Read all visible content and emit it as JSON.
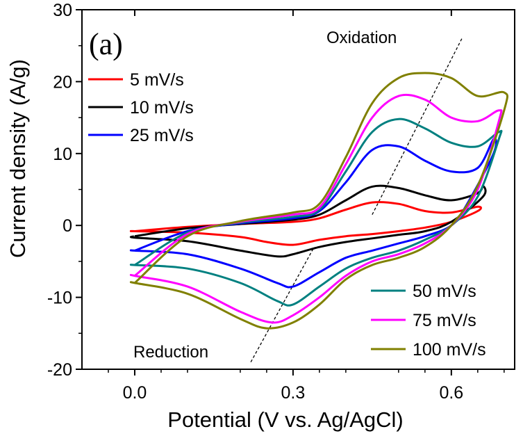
{
  "chart_data": {
    "type": "line",
    "panel_label": "(a)",
    "xlabel": "Potential (V vs. Ag/AgCl)",
    "ylabel": "Current density (A/g)",
    "xlim": [
      -0.1,
      0.72
    ],
    "ylim": [
      -20,
      30
    ],
    "xticks": [
      {
        "value": 0.0,
        "label": "0.0"
      },
      {
        "value": 0.3,
        "label": "0.3"
      },
      {
        "value": 0.6,
        "label": "0.6"
      }
    ],
    "yticks": [
      {
        "value": -20,
        "label": "-20"
      },
      {
        "value": -10,
        "label": "-10"
      },
      {
        "value": 0,
        "label": "0"
      },
      {
        "value": 10,
        "label": "10"
      },
      {
        "value": 20,
        "label": "20"
      },
      {
        "value": 30,
        "label": "30"
      }
    ],
    "annotations": {
      "oxidation": "Oxidation",
      "reduction": "Reduction"
    },
    "guide_lines": [
      {
        "name": "oxidation-guide",
        "x": [
          0.45,
          0.62
        ],
        "y": [
          1.5,
          26
        ]
      },
      {
        "name": "reduction-guide",
        "x": [
          0.22,
          0.34
        ],
        "y": [
          -19,
          -3
        ]
      }
    ],
    "series": [
      {
        "name": "5 mV/s",
        "color": "#ff0000",
        "anodic": {
          "x": [
            0.0,
            0.1,
            0.2,
            0.3,
            0.35,
            0.4,
            0.45,
            0.5,
            0.55,
            0.6,
            0.65
          ],
          "y": [
            -0.8,
            -0.2,
            0.2,
            0.5,
            1.0,
            2.2,
            3.2,
            3.0,
            2.0,
            1.8,
            2.6
          ]
        },
        "cathodic": {
          "x": [
            0.65,
            0.6,
            0.55,
            0.5,
            0.45,
            0.4,
            0.35,
            0.3,
            0.25,
            0.2,
            0.1,
            0.0
          ],
          "y": [
            2.0,
            0.5,
            -0.3,
            -0.8,
            -1.2,
            -1.5,
            -2.0,
            -2.7,
            -2.3,
            -1.6,
            -1.0,
            -0.8
          ]
        }
      },
      {
        "name": "10 mV/s",
        "color": "#000000",
        "anodic": {
          "x": [
            0.0,
            0.1,
            0.2,
            0.3,
            0.35,
            0.4,
            0.45,
            0.5,
            0.55,
            0.6,
            0.65,
            0.66
          ],
          "y": [
            -1.5,
            -0.4,
            0.2,
            0.8,
            1.5,
            3.5,
            5.4,
            5.2,
            4.2,
            3.5,
            4.5,
            5.5
          ]
        },
        "cathodic": {
          "x": [
            0.66,
            0.6,
            0.55,
            0.5,
            0.45,
            0.4,
            0.35,
            0.3,
            0.27,
            0.2,
            0.1,
            0.0
          ],
          "y": [
            4.0,
            0.5,
            -0.8,
            -1.3,
            -1.8,
            -2.3,
            -3.0,
            -4.0,
            -4.3,
            -3.5,
            -2.2,
            -1.7
          ]
        }
      },
      {
        "name": "25 mV/s",
        "color": "#0000ff",
        "anodic": {
          "x": [
            0.0,
            0.1,
            0.2,
            0.3,
            0.35,
            0.4,
            0.45,
            0.5,
            0.55,
            0.6,
            0.65,
            0.68
          ],
          "y": [
            -3.5,
            -0.8,
            0.3,
            1.0,
            2.0,
            6.0,
            10.5,
            11.0,
            9.0,
            7.5,
            8.0,
            12.0
          ]
        },
        "cathodic": {
          "x": [
            0.68,
            0.63,
            0.6,
            0.55,
            0.5,
            0.45,
            0.4,
            0.35,
            0.3,
            0.27,
            0.2,
            0.1,
            0.0
          ],
          "y": [
            10.0,
            3.0,
            0.0,
            -1.5,
            -2.5,
            -3.5,
            -4.5,
            -6.5,
            -8.5,
            -8.0,
            -6.0,
            -4.0,
            -3.5
          ]
        }
      },
      {
        "name": "50 mV/s",
        "color": "#008080",
        "anodic": {
          "x": [
            0.0,
            0.1,
            0.2,
            0.3,
            0.35,
            0.4,
            0.45,
            0.5,
            0.55,
            0.6,
            0.65,
            0.69
          ],
          "y": [
            -5.5,
            -1.0,
            0.4,
            1.2,
            2.2,
            7.5,
            13.0,
            14.8,
            13.5,
            11.5,
            11.0,
            13.0
          ]
        },
        "cathodic": {
          "x": [
            0.69,
            0.65,
            0.6,
            0.55,
            0.5,
            0.45,
            0.4,
            0.35,
            0.3,
            0.27,
            0.2,
            0.1,
            0.0
          ],
          "y": [
            12.0,
            4.0,
            0.0,
            -2.0,
            -3.5,
            -4.5,
            -6.0,
            -8.5,
            -11.0,
            -10.5,
            -8.0,
            -6.0,
            -5.5
          ]
        }
      },
      {
        "name": "75 mV/s",
        "color": "#ff00ff",
        "anodic": {
          "x": [
            0.0,
            0.1,
            0.2,
            0.3,
            0.35,
            0.4,
            0.45,
            0.5,
            0.55,
            0.6,
            0.65,
            0.69
          ],
          "y": [
            -7.0,
            -1.2,
            0.5,
            1.5,
            2.5,
            8.5,
            15.0,
            18.0,
            17.5,
            15.0,
            14.5,
            16.0
          ]
        },
        "cathodic": {
          "x": [
            0.69,
            0.65,
            0.6,
            0.55,
            0.5,
            0.45,
            0.4,
            0.35,
            0.3,
            0.26,
            0.2,
            0.1,
            0.0
          ],
          "y": [
            14.5,
            5.0,
            0.0,
            -2.5,
            -4.0,
            -5.0,
            -7.0,
            -10.0,
            -12.5,
            -13.5,
            -12.0,
            -8.5,
            -7.0
          ]
        }
      },
      {
        "name": "100 mV/s",
        "color": "#808000",
        "anodic": {
          "x": [
            0.0,
            0.1,
            0.2,
            0.3,
            0.35,
            0.4,
            0.45,
            0.5,
            0.55,
            0.6,
            0.65,
            0.7
          ],
          "y": [
            -8.0,
            -1.5,
            0.6,
            1.8,
            3.0,
            9.5,
            17.0,
            20.5,
            21.2,
            20.5,
            18.0,
            18.5
          ]
        },
        "cathodic": {
          "x": [
            0.7,
            0.65,
            0.6,
            0.55,
            0.5,
            0.45,
            0.4,
            0.35,
            0.3,
            0.25,
            0.2,
            0.1,
            0.0
          ],
          "y": [
            16.0,
            5.5,
            0.0,
            -3.0,
            -4.5,
            -5.5,
            -7.5,
            -11.0,
            -13.5,
            -14.3,
            -13.0,
            -9.5,
            -8.0
          ]
        }
      }
    ]
  }
}
